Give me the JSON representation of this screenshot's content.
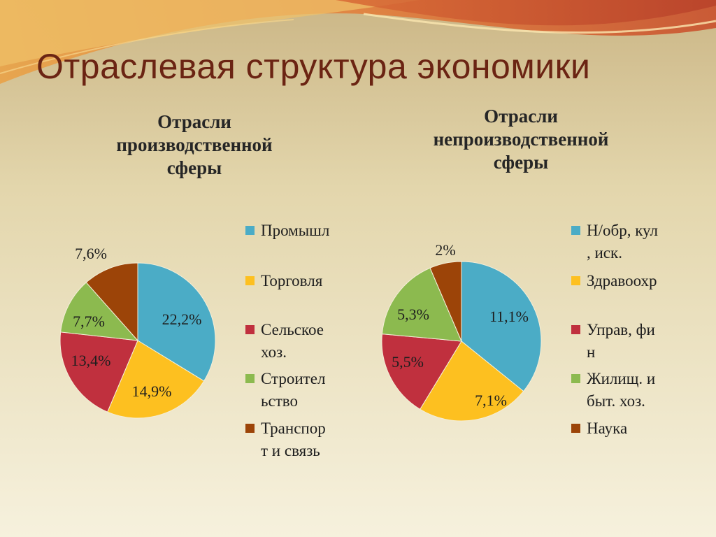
{
  "slide": {
    "title": "Отраслевая структура экономики"
  },
  "colors": {
    "blue": "#4bacc6",
    "yellow": "#fdc020",
    "red": "#c0303e",
    "green": "#8cba4f",
    "brown": "#9c4408",
    "title": "#6b2413"
  },
  "chart_data": [
    {
      "type": "pie",
      "title_lines": [
        "Отрасли",
        "производственной",
        "сферы"
      ],
      "categories": [
        "Промышл",
        "Торговля",
        "Сельское\nхоз.",
        "Строител\nьство",
        "Транспор\nт и связь"
      ],
      "values": [
        22.2,
        14.9,
        13.4,
        7.7,
        7.6
      ],
      "labels": [
        "22,2%",
        "14,9%",
        "13,4%",
        "7,7%",
        "7,6%"
      ],
      "legend": "right"
    },
    {
      "type": "pie",
      "title_lines": [
        "Отрасли",
        "непроизводственной",
        "сферы"
      ],
      "categories": [
        "Н/обр, кул\n, иск.",
        "Здравоохр",
        "Управ, фи\nн",
        "Жилищ. и\nбыт. хоз.",
        "Наука"
      ],
      "values": [
        11.1,
        7.1,
        5.5,
        5.3,
        2
      ],
      "labels": [
        "11,1%",
        "7,1%",
        "5,5%",
        "5,3%",
        "2%"
      ],
      "legend": "right"
    }
  ]
}
